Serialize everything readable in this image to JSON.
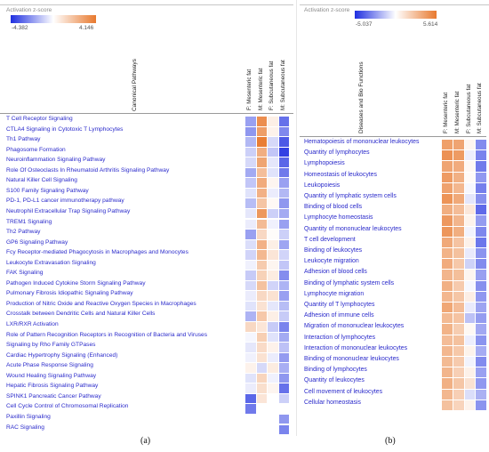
{
  "panel_a": {
    "legend_title": "Activation z-score",
    "scale_min": "-4.382",
    "scale_max": "4.146",
    "row_header": "Canonical Pathways",
    "panel_label": "(a)"
  },
  "panel_b": {
    "legend_title": "Activation z-score",
    "scale_min": "-5.037",
    "scale_max": "5.614",
    "row_header": "Diseases and Bio Functions",
    "panel_label": "(b)"
  },
  "colors": {
    "positive": "#e8792e",
    "negative": "#1f2fe0",
    "neutral": "#ffffff",
    "text": "#2a2acb"
  },
  "chart_data": [
    {
      "type": "heatmap",
      "title": "",
      "ylabel": "Canonical Pathways",
      "colorbar_label": "Activation z-score",
      "zlim": [
        -4.382,
        4.146
      ],
      "columns": [
        "F: Mesenteric fat",
        "M: Mesenteric fat",
        "F: Subcutaneous fat",
        "M: Subcutaneous fat"
      ],
      "rows": [
        "T Cell Receptor Signaling",
        "CTLA4 Signaling in Cytotoxic T Lymphocytes",
        "Th1 Pathway",
        "Phagosome Formation",
        "Neuroinflammation Signaling Pathway",
        "Role Of Osteoclasts In Rheumatoid Arthritis Signaling Pathway",
        "Natural Killer Cell Signaling",
        "S100 Family Signaling Pathway",
        "PD-1, PD-L1 cancer immunotherapy pathway",
        "Neutrophil Extracellular Trap Signaling Pathway",
        "TREM1 Signaling",
        "Th2 Pathway",
        "GP6 Signaling Pathway",
        "Fcy Receptor-mediated Phagocytosis in Macrophages and Monocytes",
        "Leukocyte Extravasation Signaling",
        "FAK Signaling",
        "Pathogen Induced Cytokine Storm Signaling Pathway",
        "Pulmonary Fibrosis Idiopathic Signaling Pathway",
        "Production of Nitric Oxide and Reactive Oxygen Species in Macrophages",
        "Crosstalk between Dendritic Cells and Natural Killer Cells",
        "LXR/RXR Activation",
        "Role of Pattern Recognition Receptors in Recognition of Bacteria and Viruses",
        "Signaling by Rho Family GTPases",
        "Cardiac Hypertrophy Signaling (Enhanced)",
        "Acute Phase Response Signaling",
        "Wound Healing Signaling Pathway",
        "Hepatic Fibrosis Signaling Pathway",
        "SPINK1 Pancreatic Cancer Pathway",
        "Cell Cycle Control of Chromosomal Replication",
        "Paxillin Signaling",
        "RAC Signaling"
      ],
      "values": [
        [
          -2.0,
          3.5,
          0.5,
          -3.0
        ],
        [
          -2.2,
          3.0,
          0.4,
          -2.5
        ],
        [
          -1.5,
          4.0,
          -0.8,
          -3.5
        ],
        [
          -1.0,
          2.5,
          -1.2,
          -4.0
        ],
        [
          -0.8,
          2.8,
          -0.5,
          -3.2
        ],
        [
          -1.8,
          2.0,
          -0.6,
          -2.8
        ],
        [
          -1.2,
          2.6,
          0.3,
          -2.0
        ],
        [
          -0.6,
          2.4,
          -0.4,
          -1.5
        ],
        [
          -1.4,
          1.8,
          0.2,
          -2.2
        ],
        [
          -0.5,
          3.2,
          -1.0,
          -1.8
        ],
        [
          -0.4,
          2.1,
          -0.3,
          -2.0
        ],
        [
          -2.0,
          1.2,
          0.1,
          -1.0
        ],
        [
          -0.7,
          2.4,
          0.5,
          -1.9
        ],
        [
          -0.9,
          2.2,
          0.8,
          -0.9
        ],
        [
          -0.3,
          1.6,
          0.3,
          -1.2
        ],
        [
          -1.1,
          1.4,
          0.6,
          -2.4
        ],
        [
          -0.8,
          1.9,
          -0.9,
          -1.6
        ],
        [
          -0.4,
          1.2,
          0.9,
          -2.0
        ],
        [
          -0.6,
          0.9,
          -0.5,
          -1.4
        ],
        [
          -1.6,
          1.7,
          0.5,
          -1.1
        ],
        [
          1.2,
          0.8,
          -1.1,
          -2.6
        ],
        [
          -0.2,
          1.5,
          -0.6,
          -1.8
        ],
        [
          -0.5,
          1.1,
          0.4,
          -1.3
        ],
        [
          -0.3,
          0.9,
          -0.4,
          -2.1
        ],
        [
          0.4,
          -0.8,
          0.6,
          -1.7
        ],
        [
          -0.6,
          1.3,
          -0.3,
          -2.2
        ],
        [
          -0.4,
          1.0,
          0.3,
          -3.0
        ],
        [
          -3.2,
          0.8,
          null,
          -1.0
        ],
        [
          -2.8,
          null,
          null,
          null
        ],
        [
          null,
          null,
          null,
          -2.2
        ],
        [
          null,
          null,
          null,
          -2.6
        ]
      ]
    },
    {
      "type": "heatmap",
      "title": "",
      "ylabel": "Diseases and Bio Functions",
      "colorbar_label": "Activation z-score",
      "zlim": [
        -5.037,
        5.614
      ],
      "columns": [
        "F: Mesenteric fat",
        "M: Mesenteric fat",
        "F: Subcutaneous fat",
        "M: Subcutaneous fat"
      ],
      "rows": [
        "Hematopoiesis of mononuclear leukocytes",
        "Quantity of lymphocytes",
        "Lymphopoiesis",
        "Homeostasis of leukocytes",
        "Leukopoiesis",
        "Quantity of lymphatic system cells",
        "Binding of blood cells",
        "Lymphocyte homeostasis",
        "Quantity of mononuclear leukocytes",
        "T cell development",
        "Binding of leukocytes",
        "Leukocyte migration",
        "Adhesion of blood cells",
        "Binding of lymphatic system cells",
        "Lymphocyte migration",
        "Quantity of T lymphocytes",
        "Adhesion of immune cells",
        "Migration of mononuclear leukocytes",
        "Interaction of lymphocytes",
        "Interaction of mononuclear leukocytes",
        "Binding of mononuclear leukocytes",
        "Binding of lymphocytes",
        "Quantity of leukocytes",
        "Cell movement of leukocytes",
        "Cellular homeostasis"
      ],
      "values": [
        [
          4.0,
          3.8,
          0.4,
          -2.8
        ],
        [
          4.6,
          4.2,
          -0.4,
          -3.0
        ],
        [
          3.8,
          3.5,
          0.3,
          -3.2
        ],
        [
          4.2,
          3.3,
          0.2,
          -2.5
        ],
        [
          3.9,
          3.0,
          -0.2,
          -3.1
        ],
        [
          4.5,
          3.6,
          -0.6,
          -2.7
        ],
        [
          3.4,
          2.8,
          1.0,
          -3.6
        ],
        [
          4.3,
          3.1,
          0.5,
          -2.4
        ],
        [
          4.4,
          3.4,
          -0.3,
          -2.9
        ],
        [
          3.6,
          2.5,
          0.6,
          -3.3
        ],
        [
          3.2,
          2.6,
          -0.5,
          -2.6
        ],
        [
          3.5,
          2.3,
          -1.1,
          -2.8
        ],
        [
          3.1,
          2.7,
          0.4,
          -2.3
        ],
        [
          3.3,
          2.2,
          -0.2,
          -2.7
        ],
        [
          3.0,
          2.4,
          0.7,
          -2.5
        ],
        [
          3.7,
          2.8,
          -0.5,
          -2.2
        ],
        [
          2.9,
          2.5,
          -1.5,
          -2.4
        ],
        [
          3.2,
          2.1,
          0.3,
          -2.1
        ],
        [
          2.8,
          2.6,
          -0.4,
          -2.6
        ],
        [
          3.0,
          2.3,
          0.5,
          -2.0
        ],
        [
          2.9,
          2.2,
          -0.3,
          -2.8
        ],
        [
          3.1,
          2.0,
          0.6,
          -2.3
        ],
        [
          3.3,
          2.4,
          1.2,
          -2.5
        ],
        [
          3.0,
          2.0,
          -0.8,
          -1.9
        ],
        [
          2.6,
          1.8,
          0.5,
          -2.6
        ]
      ]
    }
  ]
}
